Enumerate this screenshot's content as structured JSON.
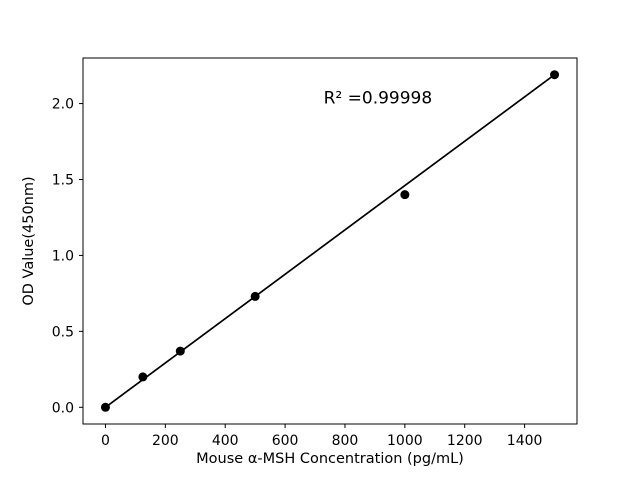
{
  "figure": {
    "background": "#ffffff"
  },
  "chart_data": {
    "type": "scatter",
    "title": "",
    "xlabel": "Mouse α-MSH Concentration (pg/mL)",
    "ylabel": "OD Value(450nm)",
    "x": [
      0,
      125,
      250,
      500,
      1000,
      1500
    ],
    "y": [
      0.0,
      0.2,
      0.37,
      0.73,
      1.4,
      2.19
    ],
    "fit_line": {
      "x": [
        0,
        1500
      ],
      "y": [
        0.0,
        2.19
      ]
    },
    "annotation": {
      "text": "R² =0.99998",
      "x": 910,
      "y": 2.04
    },
    "xlim": [
      -75,
      1575
    ],
    "ylim": [
      -0.11,
      2.3
    ],
    "xticks": [
      0,
      200,
      400,
      600,
      800,
      1000,
      1200,
      1400
    ],
    "xtick_labels": [
      "0",
      "200",
      "400",
      "600",
      "800",
      "1000",
      "1200",
      "1400"
    ],
    "yticks": [
      0,
      0.5,
      1,
      1.5,
      2
    ],
    "ytick_labels": [
      "0.0",
      "0.5",
      "1.0",
      "1.5",
      "2.0"
    ],
    "grid": false,
    "legend_position": "none",
    "marker_color": "#000000",
    "line_color": "#000000",
    "axis_color": "#000000"
  }
}
